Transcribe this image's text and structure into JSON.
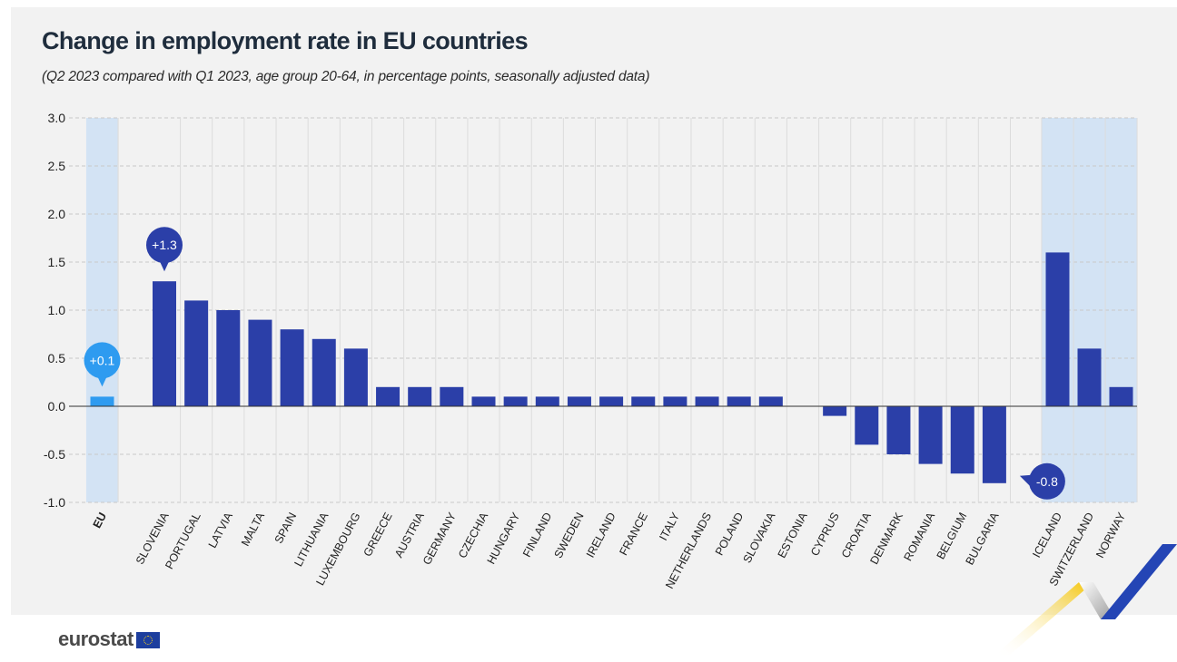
{
  "header": {
    "title": "Change in employment rate in EU countries",
    "subtitle": "(Q2 2023 compared with Q1 2023, age group 20-64, in percentage points, seasonally adjusted data)"
  },
  "branding": {
    "logo_text": "eurostat"
  },
  "colors": {
    "bar": "#2b3fa8",
    "eu_bar": "#2e9bf0",
    "highlight_band": "#d3e3f4",
    "callout_dark": "#2b3fa8",
    "callout_light": "#2e9bf0",
    "deco_yellow": "#f5c400",
    "deco_blue": "#2445b5",
    "deco_grey": "#a0a0a0"
  },
  "chart_data": {
    "type": "bar",
    "title": "Change in employment rate in EU countries",
    "subtitle": "(Q2 2023 compared with Q1 2023, age group 20-64, in percentage points, seasonally adjusted data)",
    "ylim": [
      -1.0,
      3.0
    ],
    "yticks": [
      "3.0",
      "2.5",
      "2.0",
      "1.5",
      "1.0",
      "0.5",
      "0.0",
      "-0.5",
      "-1.0"
    ],
    "grid": true,
    "categories": [
      "EU",
      "SLOVENIA",
      "PORTUGAL",
      "LATVIA",
      "MALTA",
      "SPAIN",
      "LITHUANIA",
      "LUXEMBOURG",
      "GREECE",
      "AUSTRIA",
      "GERMANY",
      "CZECHIA",
      "HUNGARY",
      "FINLAND",
      "SWEDEN",
      "IRELAND",
      "FRANCE",
      "ITALY",
      "NETHERLANDS",
      "POLAND",
      "SLOVAKIA",
      "ESTONIA",
      "CYPRUS",
      "CROATIA",
      "DENMARK",
      "ROMANIA",
      "BELGIUM",
      "BULGARIA",
      "ICELAND",
      "SWITZERLAND",
      "NORWAY"
    ],
    "values": [
      0.1,
      1.3,
      1.1,
      1.0,
      0.9,
      0.8,
      0.7,
      0.6,
      0.2,
      0.2,
      0.2,
      0.1,
      0.1,
      0.1,
      0.1,
      0.1,
      0.1,
      0.1,
      0.1,
      0.1,
      0.1,
      0.0,
      -0.1,
      -0.4,
      -0.5,
      -0.6,
      -0.7,
      -0.8,
      1.6,
      0.6,
      0.2
    ],
    "highlighted_categories": [
      "EU",
      "ICELAND",
      "SWITZERLAND",
      "NORWAY"
    ],
    "callouts": [
      {
        "category": "EU",
        "text": "+0.1"
      },
      {
        "category": "SLOVENIA",
        "text": "+1.3"
      },
      {
        "category": "BULGARIA",
        "text": "-0.8"
      }
    ]
  }
}
